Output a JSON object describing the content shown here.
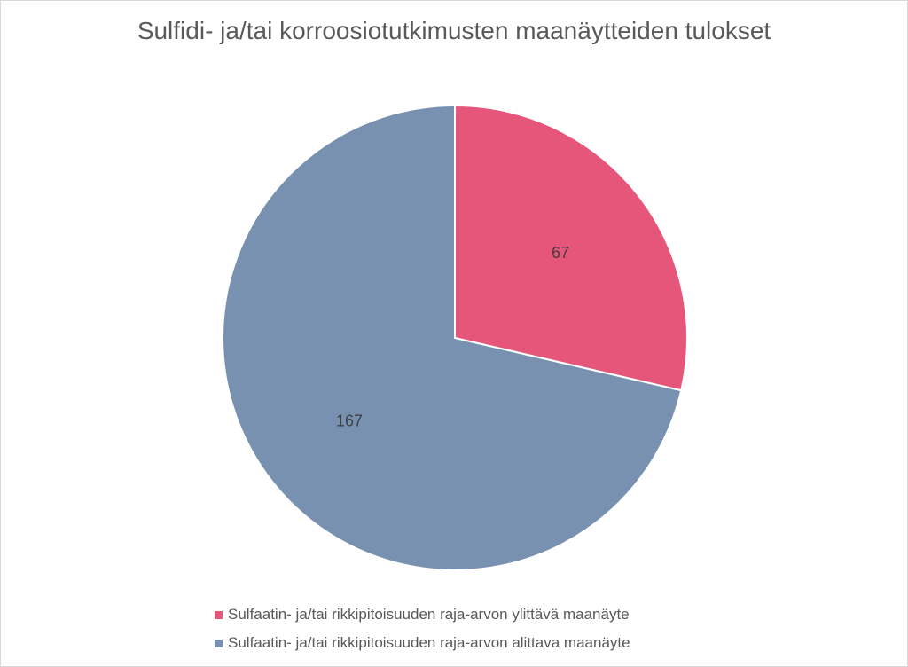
{
  "chart_data": {
    "type": "pie",
    "title": "Sulfidi- ja/tai korroosiotutkimusten maanäytteiden tulokset",
    "slices": [
      {
        "label": "Sulfaatin- ja/tai rikkipitoisuuden raja-arvon ylittävä maanäyte",
        "value": 67,
        "color": "#e5567a"
      },
      {
        "label": "Sulfaatin- ja/tai rikkipitoisuuden raja-arvon alittava maanäyte",
        "value": 167,
        "color": "#7891b0"
      }
    ],
    "legend_position": "bottom"
  }
}
